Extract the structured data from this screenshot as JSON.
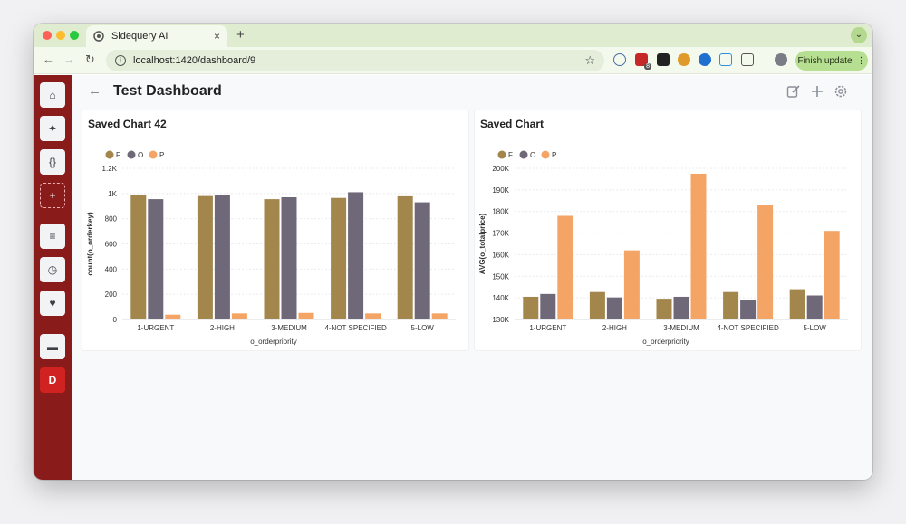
{
  "browser": {
    "tab_title": "Sidequery AI",
    "tab_close": "×",
    "new_tab": "+",
    "url": "localhost:1420/dashboard/9",
    "update_label": "Finish update",
    "update_more": "⋮",
    "extension_badge": "8",
    "tabs_menu": "⌄"
  },
  "sidebar": {
    "items": [
      {
        "name": "home",
        "glyph": "⌂"
      },
      {
        "name": "ai",
        "glyph": "✦"
      },
      {
        "name": "query",
        "glyph": "{}"
      },
      {
        "name": "add",
        "glyph": "+"
      },
      {
        "name": "database",
        "glyph": "≡"
      },
      {
        "name": "history",
        "glyph": "◷"
      },
      {
        "name": "favorites",
        "glyph": "♥"
      },
      {
        "name": "folder",
        "glyph": "▬"
      },
      {
        "name": "profile",
        "glyph": "D"
      }
    ]
  },
  "dashboard": {
    "back": "←",
    "title": "Test Dashboard"
  },
  "colors": {
    "F": "#a3864c",
    "O": "#6e6878",
    "P": "#f4a566",
    "sidebar": "#8a1b1b"
  },
  "chart_data": [
    {
      "type": "bar",
      "title": "Saved Chart 42",
      "categories": [
        "1-URGENT",
        "2-HIGH",
        "3-MEDIUM",
        "4-NOT SPECIFIED",
        "5-LOW"
      ],
      "series": [
        {
          "name": "F",
          "values": [
            990,
            980,
            955,
            965,
            978
          ]
        },
        {
          "name": "O",
          "values": [
            955,
            985,
            970,
            1010,
            930
          ]
        },
        {
          "name": "P",
          "values": [
            38,
            48,
            52,
            48,
            48
          ]
        }
      ],
      "xlabel": "o_orderpriority",
      "ylabel": "count(o_orderkey)",
      "ylim": [
        0,
        1200
      ],
      "yticks": [
        0,
        200,
        400,
        600,
        800,
        1000,
        1200
      ],
      "ytick_labels": [
        "0",
        "200",
        "400",
        "600",
        "800",
        "1K",
        "1.2K"
      ],
      "legend": "top-left"
    },
    {
      "type": "bar",
      "title": "Saved Chart",
      "categories": [
        "1-URGENT",
        "2-HIGH",
        "3-MEDIUM",
        "4-NOT SPECIFIED",
        "5-LOW"
      ],
      "series": [
        {
          "name": "F",
          "values": [
            140500,
            142700,
            139600,
            142700,
            144000
          ]
        },
        {
          "name": "O",
          "values": [
            141800,
            140200,
            140500,
            139000,
            141100
          ]
        },
        {
          "name": "P",
          "values": [
            178000,
            162000,
            197500,
            183000,
            171000
          ]
        }
      ],
      "xlabel": "o_orderpriority",
      "ylabel": "AVG(o_totalprice)",
      "ylim": [
        130000,
        200000
      ],
      "yticks": [
        130000,
        140000,
        150000,
        160000,
        170000,
        180000,
        190000,
        200000
      ],
      "ytick_labels": [
        "130K",
        "140K",
        "150K",
        "160K",
        "170K",
        "180K",
        "190K",
        "200K"
      ],
      "legend": "top-left"
    }
  ]
}
